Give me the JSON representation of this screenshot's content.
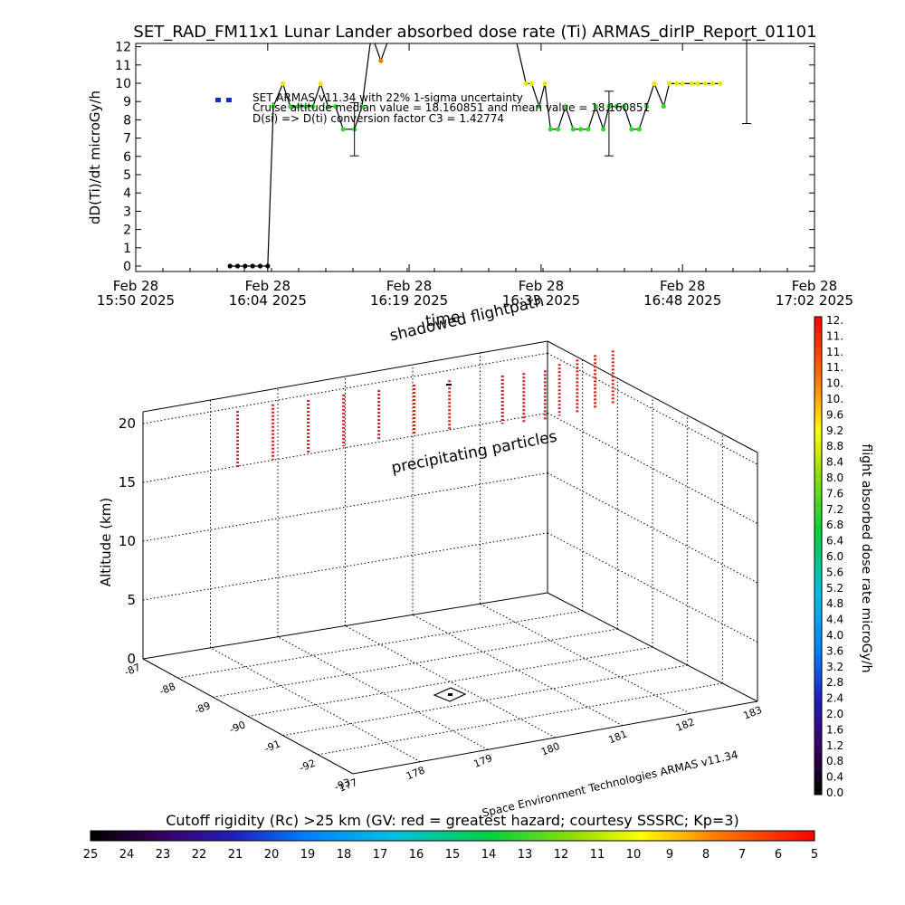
{
  "colors": {
    "background": "#ffffff",
    "axis": "#000000",
    "trace": "#000000",
    "highlight_point": "#ffff00",
    "drop_column": "#cc2020",
    "legend_marker": "#1030c0",
    "precip_marker": "#000000"
  },
  "chart_data": [
    {
      "type": "line",
      "title": "SET_RAD_FM11x1  Lunar Lander absorbed dose rate (Ti) ARMAS_dirIP_Report_01101",
      "ylabel": "dD(Ti)/dt microGy/h",
      "xlabel": "time",
      "ylim": [
        0,
        12
      ],
      "yticks": [
        "0",
        "1",
        "2",
        "3",
        "4",
        "5",
        "6",
        "7",
        "8",
        "9",
        "10",
        "11",
        "12"
      ],
      "xlim_min": [
        0,
        72
      ],
      "xtick_minutes": [
        0,
        14,
        29,
        43,
        58,
        72
      ],
      "xtick_labels": [
        [
          "Feb 28",
          "15:50  2025"
        ],
        [
          "Feb 28",
          "16:04  2025"
        ],
        [
          "Feb 28",
          "16:19  2025"
        ],
        [
          "Feb 28",
          "16:33  2025"
        ],
        [
          "Feb 28",
          "16:48  2025"
        ],
        [
          "Feb 28",
          "17:02  2025"
        ]
      ],
      "legend": [
        "SET ARMAS v11.34 with 22% 1-sigma uncertainty",
        "Cruise altitude median value = 18.160851 and mean value = 18.160851",
        "D(si) => D(ti) conversion factor C3 = 1.42774"
      ],
      "series": [
        {
          "x": [
            10.0,
            10.8,
            11.6,
            12.4,
            13.2,
            14.0,
            14.6,
            15.6,
            16.4,
            17.2,
            18.0,
            18.8,
            19.6,
            20.4,
            21.2,
            22.0,
            23.2,
            24.0,
            25.0,
            26.0,
            27.0,
            27.6,
            28.4,
            29.2,
            30.0,
            30.8,
            40.2,
            41.4,
            42.0,
            42.8,
            43.4,
            44.0,
            44.8,
            45.6,
            46.4,
            47.2,
            48.0,
            48.8,
            49.6,
            50.2,
            51.0,
            51.8,
            52.6,
            53.4,
            54.2,
            55.0,
            56.0,
            56.6,
            57.4,
            58.0,
            59.0,
            59.6,
            60.4,
            61.2,
            62.0
          ],
          "y": [
            0,
            0,
            0,
            0,
            0,
            0,
            8.4,
            9.6,
            8.4,
            8.4,
            8.4,
            8.4,
            9.6,
            8.4,
            8.4,
            7.2,
            7.2,
            8.4,
            12.2,
            10.8,
            12.2,
            12.2,
            12.2,
            12.2,
            12.2,
            12.2,
            12.2,
            9.6,
            9.6,
            8.4,
            9.6,
            7.2,
            7.2,
            8.4,
            7.2,
            7.2,
            7.2,
            8.4,
            7.2,
            8.4,
            8.4,
            8.4,
            7.2,
            7.2,
            8.4,
            9.6,
            8.4,
            9.6,
            9.6,
            9.6,
            9.6,
            9.6,
            9.6,
            9.6,
            9.6
          ],
          "marker_colors": [
            "#000000",
            "#000000",
            "#000000",
            "#000000",
            "#000000",
            "#000000",
            "#2bdc2b",
            "#e8e800",
            "#2bdc2b",
            "#2bdc2b",
            "#2bdc2b",
            "#2bdc2b",
            "#e8e800",
            "#2bdc2b",
            "#2bdc2b",
            "#2bdc2b",
            "#2bdc2b",
            "#2bdc2b",
            "#f07000",
            "#e08000",
            "#f07000",
            "#f07000",
            "#f07000",
            "#f07000",
            "#f07000",
            "#f07000",
            "#f07000",
            "#e8e800",
            "#e8e800",
            "#2bdc2b",
            "#e8e800",
            "#2bdc2b",
            "#2bdc2b",
            "#2bdc2b",
            "#2bdc2b",
            "#2bdc2b",
            "#2bdc2b",
            "#2bdc2b",
            "#2bdc2b",
            "#2bdc2b",
            "#2bdc2b",
            "#2bdc2b",
            "#2bdc2b",
            "#2bdc2b",
            "#2bdc2b",
            "#e8e800",
            "#2bdc2b",
            "#e8e800",
            "#e8e800",
            "#e8e800",
            "#e8e800",
            "#e8e800",
            "#e8e800",
            "#e8e800",
            "#e8e800"
          ]
        }
      ],
      "error_bars": [
        {
          "x": 23.2,
          "low": 5.8,
          "high": 8.6
        },
        {
          "x": 50.2,
          "low": 5.8,
          "high": 9.2
        },
        {
          "x": 64.8,
          "low": 7.5,
          "high": 11.9
        }
      ]
    },
    {
      "type": "scatter3d",
      "zlabel": "Altitude (km)",
      "zticks": [
        "0",
        "5",
        "10",
        "15",
        "20"
      ],
      "lat_ticks": [
        "-87",
        "-88",
        "-89",
        "-90",
        "-91",
        "-92",
        "-93"
      ],
      "lon_ticks": [
        "177",
        "178",
        "179",
        "180",
        "181",
        "182",
        "183"
      ],
      "annotations": [
        "shadowed flightpath",
        "precipitating particles"
      ],
      "credit": "Space Environment Technologies ARMAS v11.34",
      "drop_columns_km": [
        {
          "lon": 177.2,
          "lat": -89.3,
          "top": 20.0,
          "bottom": 15.2
        },
        {
          "lon": 177.6,
          "lat": -89.5,
          "top": 20.5,
          "bottom": 15.8
        },
        {
          "lon": 178.0,
          "lat": -89.7,
          "top": 20.8,
          "bottom": 16.2
        },
        {
          "lon": 178.4,
          "lat": -89.9,
          "top": 21.2,
          "bottom": 16.8
        },
        {
          "lon": 178.8,
          "lat": -90.1,
          "top": 21.5,
          "bottom": 17.2
        },
        {
          "lon": 179.2,
          "lat": -90.3,
          "top": 21.9,
          "bottom": 17.6
        },
        {
          "lon": 179.6,
          "lat": -90.5,
          "top": 22.2,
          "bottom": 18.0
        },
        {
          "lon": 180.2,
          "lat": -90.8,
          "top": 22.5,
          "bottom": 18.4
        },
        {
          "lon": 180.6,
          "lat": -90.6,
          "top": 22.0,
          "bottom": 17.8
        },
        {
          "lon": 181.0,
          "lat": -90.4,
          "top": 21.5,
          "bottom": 17.2
        },
        {
          "lon": 181.4,
          "lat": -90.0,
          "top": 21.0,
          "bottom": 16.6
        },
        {
          "lon": 181.8,
          "lat": -89.7,
          "top": 20.5,
          "bottom": 16.0
        },
        {
          "lon": 182.2,
          "lat": -89.4,
          "top": 20.0,
          "bottom": 15.5
        },
        {
          "lon": 182.6,
          "lat": -89.1,
          "top": 19.5,
          "bottom": 15.0
        }
      ],
      "colorbar": {
        "label": "flight absorbed dose rate microGy/h",
        "range": [
          0.0,
          12.0
        ],
        "tick_labels": [
          "0.0",
          "0.4",
          "0.8",
          "1.2",
          "1.6",
          "2.0",
          "2.4",
          "2.8",
          "3.2",
          "3.6",
          "4.0",
          "4.4",
          "4.8",
          "5.2",
          "5.6",
          "6.0",
          "6.4",
          "6.8",
          "7.2",
          "7.6",
          "8.0",
          "8.4",
          "8.8",
          "9.2",
          "9.6",
          "10.",
          "10.",
          "11.",
          "11.",
          "11.",
          "12."
        ]
      }
    },
    {
      "type": "colorbar",
      "title": "Cutoff rigidity (Rc) >25 km (GV: red = greatest hazard; courtesy SSSRC; Kp=3)",
      "tick_labels": [
        "25",
        "24",
        "23",
        "22",
        "21",
        "20",
        "19",
        "18",
        "17",
        "16",
        "15",
        "14",
        "13",
        "12",
        "11",
        "10",
        "9",
        "8",
        "7",
        "6",
        "5"
      ]
    }
  ]
}
